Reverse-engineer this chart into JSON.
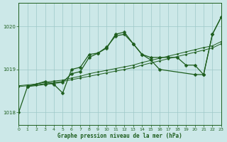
{
  "title": "Graphe pression niveau de la mer (hPa)",
  "background_color": "#cce8e8",
  "grid_color": "#9dc8c8",
  "line_color": "#1e5e1e",
  "xlim": [
    0,
    23
  ],
  "ylim": [
    1017.7,
    1020.55
  ],
  "yticks": [
    1018,
    1019,
    1020
  ],
  "xticks": [
    0,
    1,
    2,
    3,
    4,
    5,
    6,
    7,
    8,
    9,
    10,
    11,
    12,
    13,
    14,
    15,
    16,
    17,
    18,
    19,
    20,
    21,
    22,
    23
  ],
  "series": [
    {
      "x": [
        0,
        1,
        2,
        3,
        4,
        5,
        6,
        7,
        8,
        9,
        10,
        11,
        12,
        13,
        14,
        15,
        16,
        17,
        18,
        19,
        20,
        21,
        22,
        23
      ],
      "y": [
        1018.6,
        1018.62,
        1018.64,
        1018.67,
        1018.7,
        1018.72,
        1018.76,
        1018.8,
        1018.84,
        1018.88,
        1018.92,
        1018.96,
        1019.0,
        1019.04,
        1019.1,
        1019.15,
        1019.2,
        1019.25,
        1019.3,
        1019.35,
        1019.4,
        1019.45,
        1019.5,
        1019.6
      ]
    },
    {
      "x": [
        0,
        1,
        2,
        3,
        4,
        5,
        6,
        7,
        8,
        9,
        10,
        11,
        12,
        13,
        14,
        15,
        16,
        17,
        18,
        19,
        20,
        21,
        22,
        23
      ],
      "y": [
        1018.62,
        1018.64,
        1018.66,
        1018.7,
        1018.73,
        1018.75,
        1018.8,
        1018.84,
        1018.9,
        1018.94,
        1018.98,
        1019.02,
        1019.06,
        1019.1,
        1019.16,
        1019.21,
        1019.26,
        1019.31,
        1019.36,
        1019.41,
        1019.46,
        1019.51,
        1019.55,
        1019.65
      ]
    },
    {
      "x": [
        0,
        1,
        3,
        5,
        6,
        7,
        8,
        9,
        10,
        11,
        12,
        13,
        14,
        15,
        16,
        17,
        18,
        19,
        20,
        21,
        22,
        23
      ],
      "y": [
        1018.0,
        1018.6,
        1018.65,
        1018.7,
        1018.9,
        1018.95,
        1019.28,
        1019.38,
        1019.5,
        1019.82,
        1019.87,
        1019.6,
        1019.35,
        1019.28,
        1019.28,
        1019.28,
        1019.28,
        1019.1,
        1019.1,
        1018.88,
        1019.82,
        1020.22
      ]
    },
    {
      "x": [
        1,
        3,
        4,
        5,
        6,
        7,
        8,
        9,
        10,
        11,
        12,
        13,
        14,
        15,
        16,
        20,
        21,
        22,
        23
      ],
      "y": [
        1018.6,
        1018.72,
        1018.65,
        1018.45,
        1019.0,
        1019.05,
        1019.35,
        1019.38,
        1019.52,
        1019.78,
        1019.82,
        1019.6,
        1019.35,
        1019.22,
        1019.0,
        1018.88,
        1018.88,
        1019.82,
        1020.22
      ]
    }
  ]
}
